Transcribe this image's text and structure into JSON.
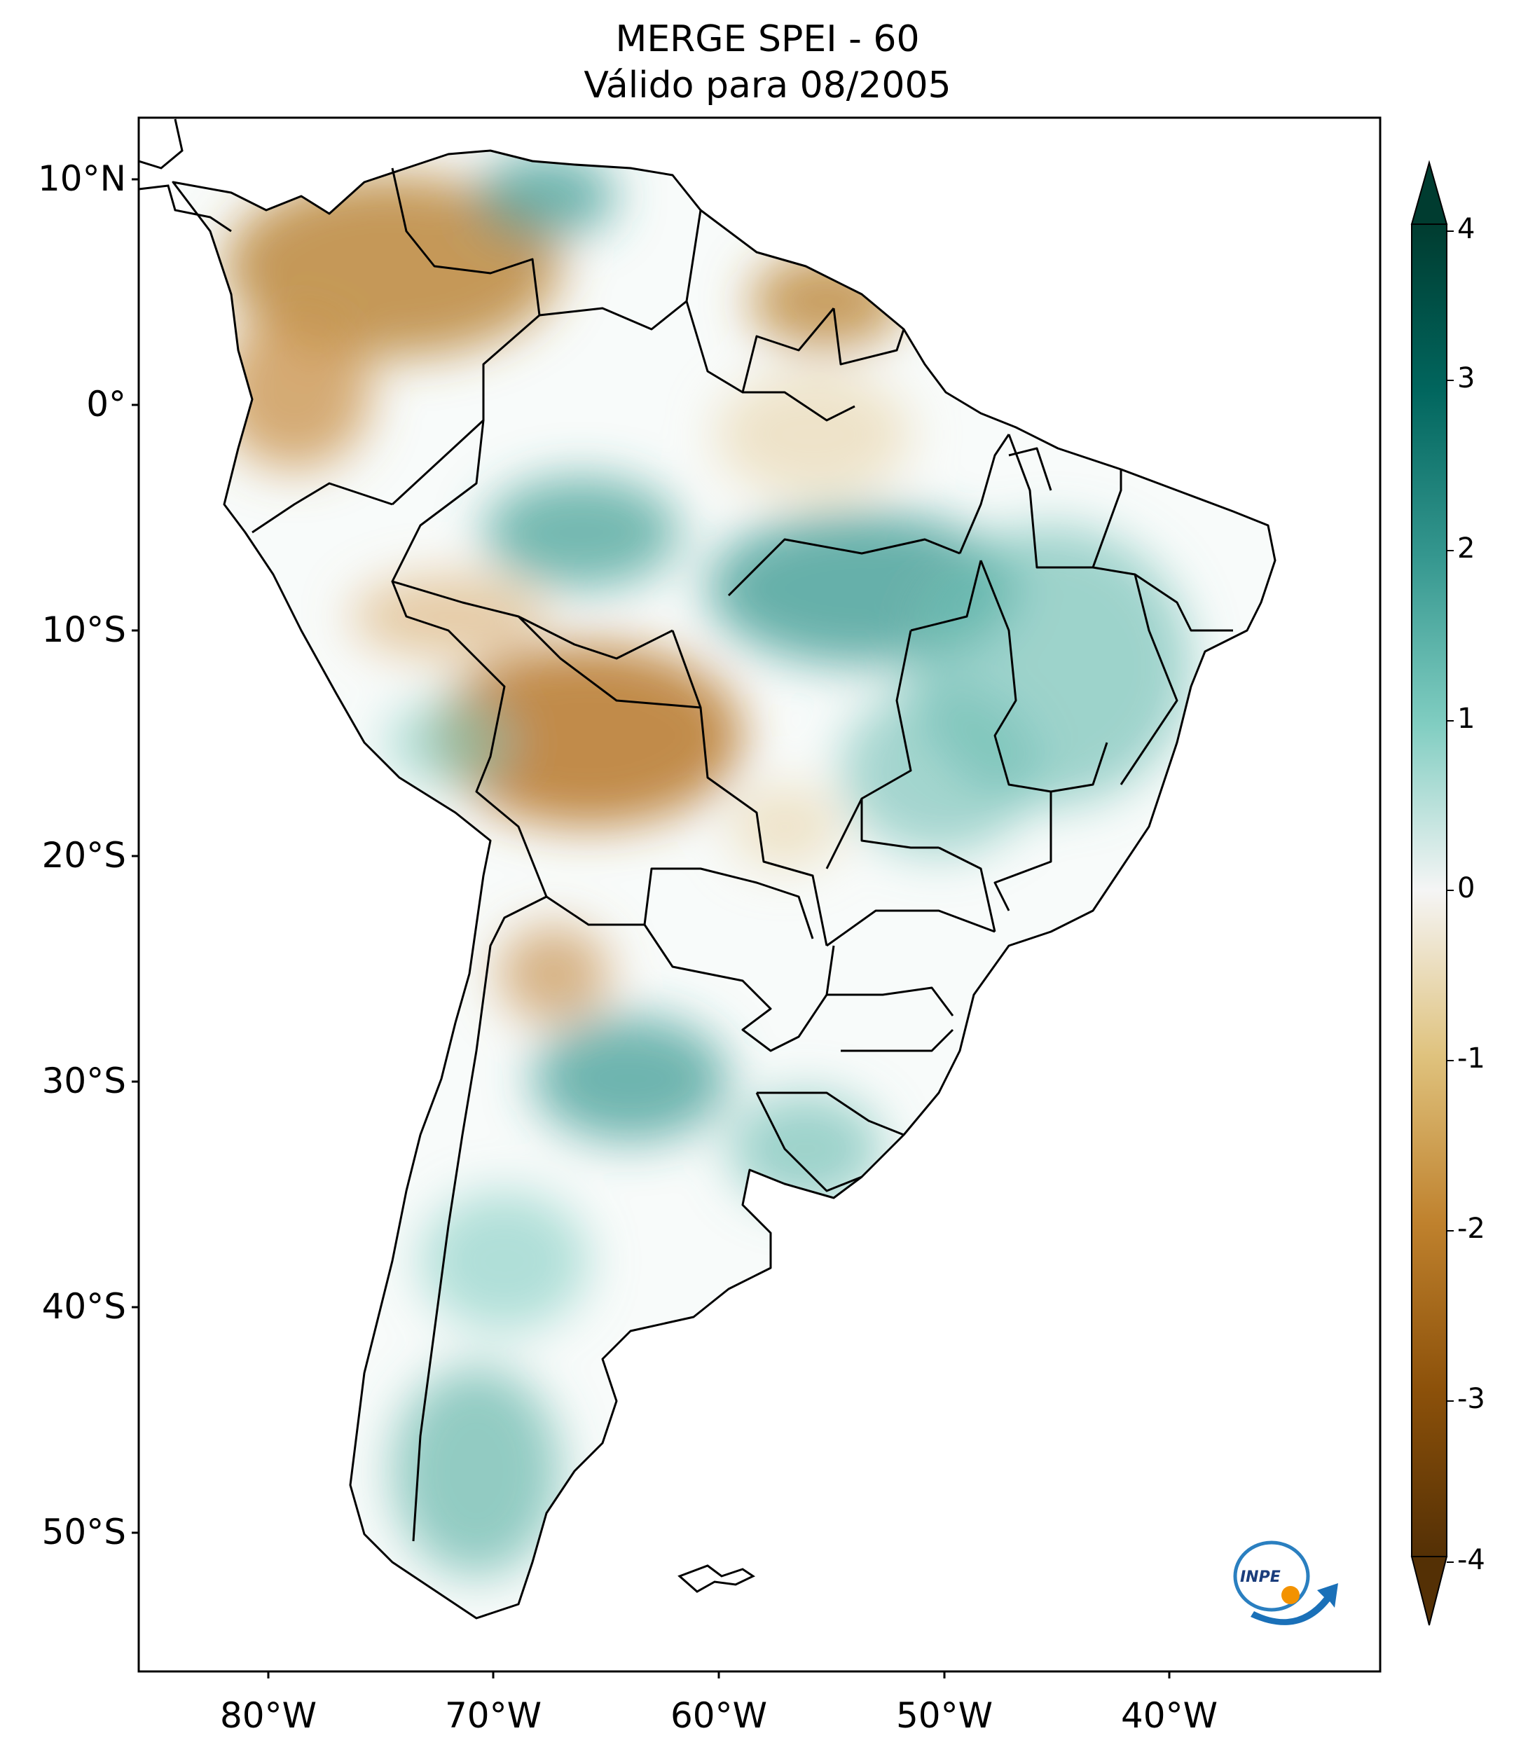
{
  "title": {
    "line1": "MERGE   SPEI - 60",
    "line2": "Válido para 08/2005"
  },
  "map": {
    "region": "South America",
    "variable": "SPEI - 60",
    "lat_labels": [
      "10°N",
      "0°",
      "10°S",
      "20°S",
      "30°S",
      "40°S",
      "50°S"
    ],
    "lon_labels": [
      "80°W",
      "70°W",
      "60°W",
      "50°W",
      "40°W"
    ],
    "extent": {
      "lon": [
        -85,
        -30
      ],
      "lat": [
        -56,
        13
      ]
    },
    "land_color": "#ffffff",
    "border_color": "#000000"
  },
  "colorbar": {
    "ticks": [
      "4",
      "3",
      "2",
      "1",
      "0",
      "-1",
      "-2",
      "-3",
      "-4"
    ],
    "range": [
      -4,
      4
    ],
    "extend": "both",
    "colormap": "BrBG",
    "colors": {
      "dry_extreme": "#543005",
      "dry": "#bf812d",
      "neutral": "#ffffff",
      "wet": "#35978f",
      "wet_extreme": "#003c30"
    }
  },
  "logo": {
    "text": "INPE"
  }
}
